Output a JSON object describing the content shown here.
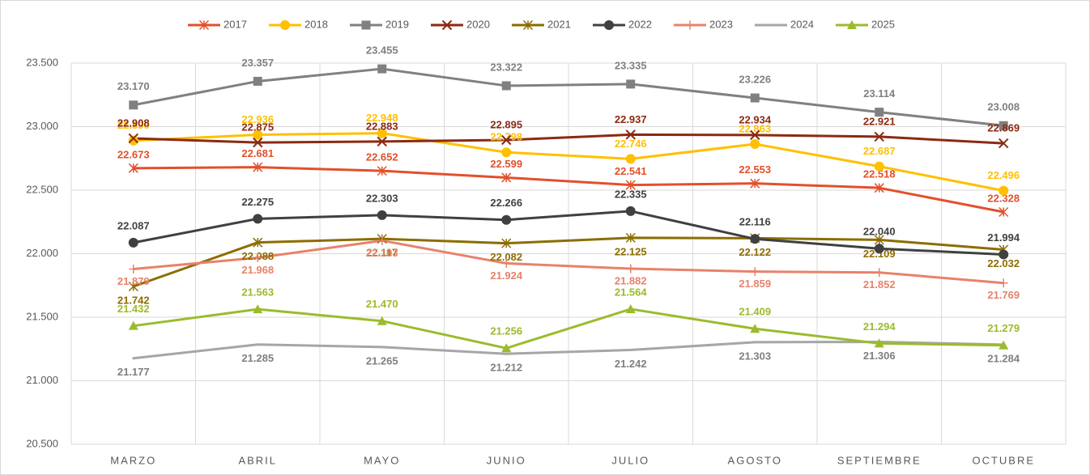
{
  "chart_data": {
    "type": "line",
    "categories": [
      "MARZO",
      "ABRIL",
      "MAYO",
      "JUNIO",
      "JULIO",
      "AGOSTO",
      "SEPTIEMBRE",
      "OCTUBRE"
    ],
    "ylim": [
      20500,
      23500
    ],
    "yticks": [
      {
        "value": 20500,
        "label": "20.500"
      },
      {
        "value": 21000,
        "label": "21.000"
      },
      {
        "value": 21500,
        "label": "21.500"
      },
      {
        "value": 22000,
        "label": "22.000"
      },
      {
        "value": 22500,
        "label": "22.500"
      },
      {
        "value": 23000,
        "label": "23.000"
      },
      {
        "value": 23500,
        "label": "23.500"
      }
    ],
    "grid": true,
    "legend": "top",
    "series": [
      {
        "name": "2017",
        "color": "#e2502b",
        "marker": "asterisk",
        "values": [
          22673,
          22681,
          22652,
          22599,
          22541,
          22553,
          22518,
          22328
        ],
        "value_labels": [
          "22.673",
          "22.681",
          "22.652",
          "22.599",
          "22.541",
          "22.553",
          "22.518",
          "22.328"
        ]
      },
      {
        "name": "2018",
        "color": "#ffc000",
        "marker": "circle",
        "values": [
          22890,
          22936,
          22948,
          22798,
          22746,
          22863,
          22687,
          22496
        ],
        "value_labels": [
          "22.890",
          "22.936",
          "22.948",
          "22.798",
          "22.746",
          "22.863",
          "22.687",
          "22.496"
        ]
      },
      {
        "name": "2019",
        "color": "#808080",
        "marker": "square",
        "values": [
          23170,
          23357,
          23455,
          23322,
          23335,
          23226,
          23114,
          23008
        ],
        "value_labels": [
          "23.170",
          "23.357",
          "23.455",
          "23.322",
          "23.335",
          "23.226",
          "23.114",
          "23.008"
        ]
      },
      {
        "name": "2020",
        "color": "#8b2a12",
        "marker": "x",
        "values": [
          22908,
          22875,
          22883,
          22895,
          22937,
          22934,
          22921,
          22869
        ],
        "value_labels": [
          "22.908",
          "22.875",
          "22.883",
          "22.895",
          "22.937",
          "22.934",
          "22.921",
          "22.869"
        ]
      },
      {
        "name": "2021",
        "color": "#8c6d00",
        "marker": "asterisk",
        "values": [
          21742,
          22088,
          22117,
          22082,
          22125,
          22122,
          22109,
          22032
        ],
        "value_labels": [
          "21.742",
          "22.088",
          "22.117",
          "22.082",
          "22.125",
          "22.122",
          "22.109",
          "22.032"
        ]
      },
      {
        "name": "2022",
        "color": "#404040",
        "marker": "circle",
        "values": [
          22087,
          22275,
          22303,
          22266,
          22335,
          22116,
          22040,
          21994
        ],
        "value_labels": [
          "22.087",
          "22.275",
          "22.303",
          "22.266",
          "22.335",
          "22.116",
          "22.040",
          "21.994"
        ]
      },
      {
        "name": "2023",
        "color": "#e8826a",
        "marker": "plus",
        "values": [
          21879,
          21968,
          22103,
          21924,
          21882,
          21859,
          21852,
          21769
        ],
        "value_labels": [
          "21.879",
          "21.968",
          "22.103",
          "21.924",
          "21.882",
          "21.859",
          "21.852",
          "21.769"
        ]
      },
      {
        "name": "2024",
        "color": "#a6a6a6",
        "marker": "none",
        "values": [
          21177,
          21285,
          21265,
          21212,
          21242,
          21303,
          21306,
          21284
        ],
        "value_labels": [
          "21.177",
          "21.285",
          "21.265",
          "21.212",
          "21.242",
          "21.303",
          "21.306",
          "21.284"
        ]
      },
      {
        "name": "2025",
        "color": "#9bbb2c",
        "marker": "triangle",
        "values": [
          21432,
          21563,
          21470,
          21256,
          21564,
          21409,
          21294,
          21279
        ],
        "value_labels": [
          "21.432",
          "21.563",
          "21.470",
          "21.256",
          "21.564",
          "21.409",
          "21.294",
          "21.279"
        ]
      }
    ]
  }
}
